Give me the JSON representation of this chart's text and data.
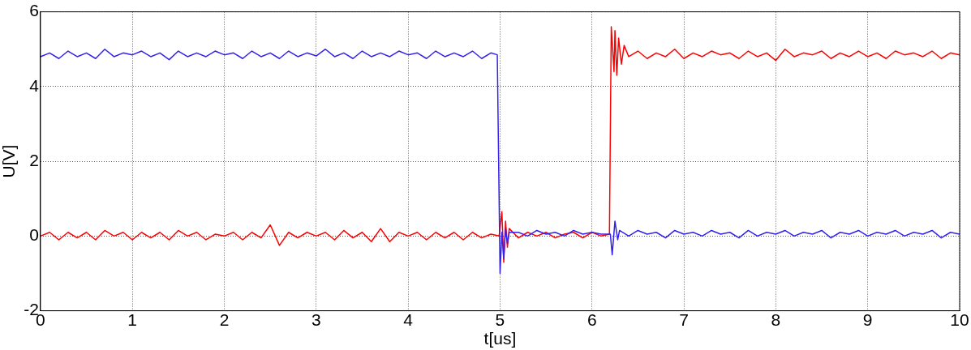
{
  "chart_data": {
    "type": "line",
    "xlabel": "t[us]",
    "ylabel": "U[V]",
    "xlim": [
      0,
      10
    ],
    "ylim": [
      -2,
      6
    ],
    "xticks": [
      0,
      1,
      2,
      3,
      4,
      5,
      6,
      7,
      8,
      9,
      10
    ],
    "yticks": [
      -2,
      0,
      2,
      4,
      6
    ],
    "grid": true,
    "line_style": "solid",
    "marker": "none",
    "series": [
      {
        "color": "#3322ee",
        "x": [
          0,
          0.1,
          0.2,
          0.3,
          0.4,
          0.5,
          0.6,
          0.7,
          0.8,
          0.9,
          1,
          1.1,
          1.2,
          1.3,
          1.4,
          1.5,
          1.6,
          1.7,
          1.8,
          1.9,
          2,
          2.1,
          2.2,
          2.3,
          2.4,
          2.5,
          2.6,
          2.7,
          2.8,
          2.9,
          3,
          3.1,
          3.2,
          3.3,
          3.4,
          3.5,
          3.6,
          3.7,
          3.8,
          3.9,
          4,
          4.1,
          4.2,
          4.3,
          4.4,
          4.5,
          4.6,
          4.7,
          4.8,
          4.9,
          4.97,
          5,
          5.02,
          5.04,
          5.06,
          5.08,
          5.1,
          5.2,
          5.3,
          5.4,
          5.5,
          5.6,
          5.7,
          5.8,
          5.9,
          6,
          6.1,
          6.2,
          6.22,
          6.25,
          6.28,
          6.3,
          6.4,
          6.5,
          6.6,
          6.7,
          6.8,
          6.9,
          7,
          7.1,
          7.2,
          7.3,
          7.4,
          7.5,
          7.6,
          7.7,
          7.8,
          7.9,
          8,
          8.1,
          8.2,
          8.3,
          8.4,
          8.5,
          8.6,
          8.7,
          8.8,
          8.9,
          9,
          9.1,
          9.2,
          9.3,
          9.4,
          9.5,
          9.6,
          9.7,
          9.8,
          9.9,
          10
        ],
        "values": [
          4.8,
          4.9,
          4.75,
          4.95,
          4.8,
          4.9,
          4.75,
          5.0,
          4.8,
          4.9,
          4.85,
          4.95,
          4.8,
          4.9,
          4.72,
          4.95,
          4.8,
          4.9,
          4.8,
          4.95,
          4.85,
          4.9,
          4.75,
          4.95,
          4.8,
          4.9,
          4.75,
          4.95,
          4.8,
          4.9,
          4.82,
          5.0,
          4.8,
          4.9,
          4.75,
          4.95,
          4.8,
          4.9,
          4.8,
          4.95,
          4.85,
          4.9,
          4.75,
          4.95,
          4.8,
          4.9,
          4.8,
          4.95,
          4.75,
          4.9,
          4.85,
          -1.0,
          0.1,
          -0.6,
          0.2,
          -0.2,
          0.1,
          0.1,
          0.0,
          0.15,
          0.05,
          0.1,
          0.0,
          0.15,
          0.05,
          0.1,
          0.05,
          0.05,
          -0.5,
          0.4,
          -0.1,
          0.15,
          0.0,
          0.15,
          0.05,
          0.1,
          -0.05,
          0.15,
          0.05,
          0.1,
          0.0,
          0.15,
          0.05,
          0.1,
          -0.05,
          0.15,
          0.0,
          0.1,
          0.05,
          0.15,
          0.0,
          0.1,
          0.05,
          0.15,
          -0.05,
          0.1,
          0.05,
          0.15,
          0.0,
          0.1,
          0.05,
          0.15,
          0.0,
          0.1,
          0.05,
          0.15,
          -0.05,
          0.1,
          0.05
        ]
      },
      {
        "color": "#ff0000",
        "x": [
          0,
          0.1,
          0.2,
          0.3,
          0.4,
          0.5,
          0.6,
          0.7,
          0.8,
          0.9,
          1,
          1.1,
          1.2,
          1.3,
          1.4,
          1.5,
          1.6,
          1.7,
          1.8,
          1.9,
          2,
          2.1,
          2.2,
          2.3,
          2.4,
          2.5,
          2.6,
          2.7,
          2.8,
          2.9,
          3,
          3.1,
          3.2,
          3.3,
          3.4,
          3.5,
          3.6,
          3.7,
          3.8,
          3.9,
          4,
          4.1,
          4.2,
          4.3,
          4.4,
          4.5,
          4.6,
          4.7,
          4.8,
          4.9,
          4.99,
          5.02,
          5.04,
          5.06,
          5.08,
          5.1,
          5.2,
          5.3,
          5.4,
          5.5,
          5.6,
          5.7,
          5.8,
          5.9,
          6,
          6.1,
          6.19,
          6.21,
          6.24,
          6.25,
          6.27,
          6.29,
          6.32,
          6.35,
          6.4,
          6.5,
          6.6,
          6.7,
          6.8,
          6.9,
          7,
          7.1,
          7.2,
          7.3,
          7.4,
          7.5,
          7.6,
          7.7,
          7.8,
          7.9,
          8,
          8.1,
          8.2,
          8.3,
          8.4,
          8.5,
          8.6,
          8.7,
          8.8,
          8.9,
          9,
          9.1,
          9.2,
          9.3,
          9.4,
          9.5,
          9.6,
          9.7,
          9.8,
          9.9,
          10
        ],
        "values": [
          0.0,
          0.1,
          -0.1,
          0.1,
          -0.05,
          0.1,
          -0.1,
          0.15,
          0.0,
          0.1,
          -0.1,
          0.1,
          -0.05,
          0.1,
          -0.1,
          0.15,
          0.0,
          0.1,
          -0.1,
          0.05,
          0.0,
          0.1,
          -0.1,
          0.1,
          -0.05,
          0.3,
          -0.25,
          0.1,
          -0.05,
          0.1,
          0.0,
          0.1,
          -0.1,
          0.15,
          -0.05,
          0.1,
          -0.15,
          0.2,
          -0.15,
          0.1,
          0.0,
          0.1,
          -0.1,
          0.1,
          -0.05,
          0.1,
          -0.1,
          0.1,
          -0.05,
          0.05,
          0.0,
          0.65,
          -0.7,
          0.4,
          -0.3,
          0.2,
          -0.05,
          0.1,
          0.0,
          0.1,
          -0.05,
          0.05,
          0.1,
          -0.05,
          0.1,
          0.0,
          0.05,
          5.6,
          4.4,
          5.5,
          4.3,
          5.3,
          4.6,
          5.1,
          4.8,
          4.95,
          4.75,
          4.9,
          4.8,
          5.0,
          4.75,
          4.9,
          4.8,
          4.95,
          4.85,
          4.9,
          4.75,
          4.95,
          4.8,
          4.9,
          4.7,
          5.0,
          4.8,
          4.9,
          4.85,
          4.95,
          4.75,
          4.9,
          4.8,
          4.95,
          4.8,
          4.9,
          4.75,
          4.95,
          4.85,
          4.9,
          4.8,
          4.95,
          4.75,
          4.9,
          4.85
        ]
      }
    ]
  }
}
